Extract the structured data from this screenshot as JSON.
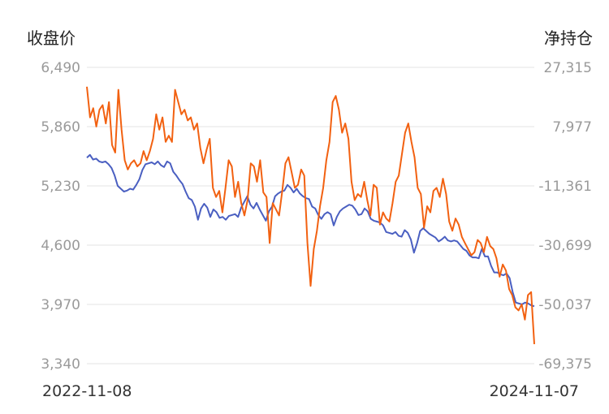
{
  "chart_data": {
    "type": "line",
    "left_axis_title": "收盘价",
    "right_axis_title": "净持仓",
    "x_start_label": "2022-11-08",
    "x_end_label": "2024-11-07",
    "left_ticks": [
      "6,490",
      "5,860",
      "5,230",
      "4,600",
      "3,970",
      "3,340"
    ],
    "right_ticks": [
      "27,315",
      "7,977",
      "-11,361",
      "-30,699",
      "-50,037",
      "-69,375"
    ],
    "ylim_left": [
      3340,
      6490
    ],
    "ylim_right": [
      -69375,
      27315
    ],
    "grid": true,
    "series": [
      {
        "axis": "left",
        "color": "#4a5fc1",
        "values": [
          5530,
          5560,
          5510,
          5520,
          5490,
          5480,
          5490,
          5460,
          5420,
          5340,
          5230,
          5200,
          5170,
          5180,
          5200,
          5190,
          5240,
          5300,
          5400,
          5460,
          5470,
          5480,
          5460,
          5490,
          5450,
          5430,
          5490,
          5470,
          5380,
          5340,
          5290,
          5250,
          5170,
          5100,
          5080,
          5010,
          4870,
          4990,
          5040,
          5000,
          4900,
          4980,
          4950,
          4890,
          4900,
          4870,
          4910,
          4920,
          4930,
          4900,
          5000,
          5060,
          5120,
          5030,
          4990,
          5050,
          4980,
          4920,
          4860,
          4960,
          5010,
          5120,
          5150,
          5170,
          5180,
          5240,
          5210,
          5160,
          5200,
          5150,
          5120,
          5100,
          5090,
          5010,
          4990,
          4920,
          4880,
          4930,
          4950,
          4930,
          4810,
          4900,
          4960,
          4990,
          5010,
          5030,
          5020,
          4980,
          4920,
          4930,
          4990,
          4960,
          4880,
          4860,
          4850,
          4840,
          4810,
          4740,
          4730,
          4720,
          4740,
          4700,
          4690,
          4760,
          4730,
          4660,
          4520,
          4620,
          4750,
          4780,
          4750,
          4720,
          4700,
          4680,
          4640,
          4660,
          4690,
          4650,
          4640,
          4650,
          4640,
          4600,
          4560,
          4540,
          4490,
          4470,
          4470,
          4460,
          4560,
          4480,
          4480,
          4380,
          4310,
          4310,
          4290,
          4280,
          4300,
          4250,
          4100,
          3990,
          3980,
          3970,
          3990,
          3980,
          3960,
          3950
        ]
      },
      {
        "axis": "right",
        "color": "#f26111",
        "values": [
          21000,
          11000,
          14000,
          8000,
          13500,
          15000,
          9000,
          16000,
          2000,
          -500,
          20000,
          7000,
          -3000,
          -6000,
          -4000,
          -3000,
          -5000,
          -4000,
          0,
          -3000,
          0,
          4000,
          12000,
          7000,
          11000,
          3000,
          5000,
          3000,
          20000,
          16000,
          12000,
          13500,
          10000,
          11000,
          7000,
          9000,
          1000,
          -4000,
          500,
          4000,
          -12000,
          -15000,
          -13000,
          -20000,
          -12000,
          -3000,
          -5000,
          -15000,
          -10000,
          -17000,
          -21000,
          -16000,
          -4000,
          -5000,
          -10000,
          -3000,
          -13500,
          -15000,
          -30000,
          -17000,
          -19000,
          -21000,
          -13000,
          -4000,
          -2000,
          -7000,
          -12000,
          -11000,
          -6000,
          -8000,
          -30000,
          -44000,
          -32000,
          -26000,
          -18000,
          -12000,
          -3000,
          3000,
          16000,
          18000,
          13500,
          6000,
          9000,
          4000,
          -10000,
          -16000,
          -14000,
          -15000,
          -10000,
          -16000,
          -21000,
          -11000,
          -12000,
          -24000,
          -20000,
          -22000,
          -23000,
          -17000,
          -10000,
          -8000,
          -1000,
          6000,
          9000,
          3000,
          -2000,
          -12000,
          -14000,
          -25000,
          -18000,
          -20000,
          -13000,
          -12000,
          -15000,
          -9000,
          -14000,
          -23000,
          -26000,
          -22000,
          -24000,
          -28000,
          -30000,
          -32000,
          -34000,
          -33000,
          -29000,
          -30000,
          -33000,
          -28000,
          -31000,
          -32000,
          -35000,
          -41000,
          -37000,
          -39000,
          -45000,
          -47000,
          -51000,
          -52000,
          -50000,
          -55000,
          -47000,
          -46000,
          -63000
        ]
      }
    ]
  }
}
